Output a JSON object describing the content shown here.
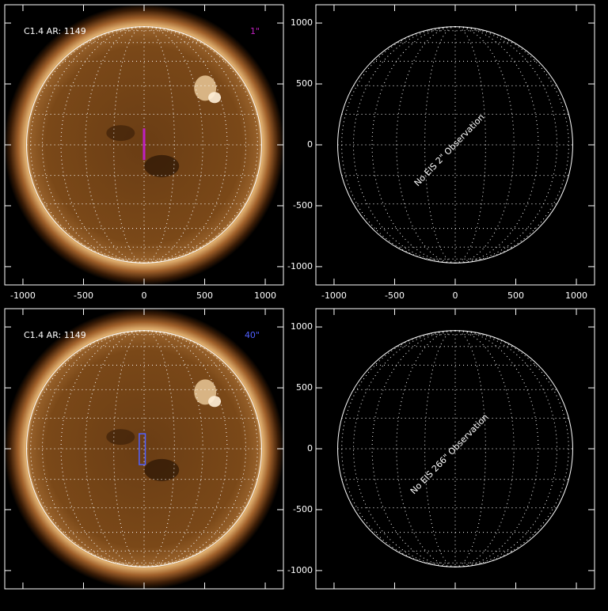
{
  "chart_data": [
    {
      "type": "sun",
      "label": "C1.4 AR: 1149",
      "slit_label": "1\"",
      "slit_color": "#c020c0",
      "slit_style": "solid",
      "slit": {
        "x0": -10,
        "x1": 10,
        "y0": -125,
        "y1": 135
      },
      "disk_radius": 970,
      "xlim": [
        -1150,
        1150
      ],
      "ylim": [
        -1150,
        1150
      ],
      "xticks": [
        -1000,
        -500,
        0,
        500,
        1000
      ],
      "yticks": [
        -1000,
        -500,
        0,
        500,
        1000
      ],
      "show_xtick_labels": true,
      "show_ytick_labels": false
    },
    {
      "type": "blank",
      "message": "No EIS 2\" Observation",
      "disk_radius": 970,
      "xlim": [
        -1150,
        1150
      ],
      "ylim": [
        -1150,
        1150
      ],
      "xticks": [
        -1000,
        -500,
        0,
        500,
        1000
      ],
      "yticks": [
        -1000,
        -500,
        0,
        500,
        1000
      ],
      "show_xtick_labels": true,
      "show_ytick_labels": true
    },
    {
      "type": "sun",
      "label": "C1.4 AR: 1149",
      "slit_label": "40\"",
      "slit_color": "#5060ff",
      "slit_style": "outline",
      "slit": {
        "x0": -40,
        "x1": 10,
        "y0": -130,
        "y1": 123
      },
      "disk_radius": 970,
      "xlim": [
        -1150,
        1150
      ],
      "ylim": [
        -1150,
        1150
      ],
      "xticks": [
        -1000,
        -500,
        0,
        500,
        1000
      ],
      "yticks": [
        -1000,
        -500,
        0,
        500,
        1000
      ],
      "show_xtick_labels": false,
      "show_ytick_labels": false
    },
    {
      "type": "blank",
      "message": "No EIS 266\" Observation",
      "disk_radius": 970,
      "xlim": [
        -1150,
        1150
      ],
      "ylim": [
        -1150,
        1150
      ],
      "xticks": [
        -1000,
        -500,
        0,
        500,
        1000
      ],
      "yticks": [
        -1000,
        -500,
        0,
        500,
        1000
      ],
      "show_xtick_labels": false,
      "show_ytick_labels": true
    }
  ]
}
